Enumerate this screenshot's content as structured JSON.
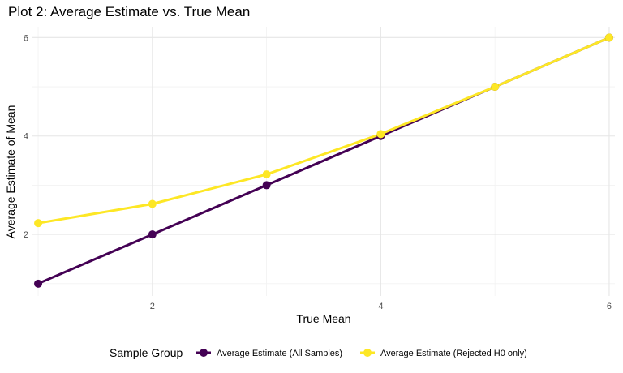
{
  "chart_data": {
    "type": "line",
    "title": "Plot 2: Average Estimate vs. True Mean",
    "xlabel": "True Mean",
    "ylabel": "Average Estimate of Mean",
    "x": [
      1,
      2,
      3,
      4,
      5,
      6
    ],
    "x_ticks": [
      2,
      4,
      6
    ],
    "y_ticks": [
      2,
      4,
      6
    ],
    "xlim": [
      0.95,
      6.05
    ],
    "ylim": [
      0.75,
      6.22
    ],
    "grid": true,
    "legend_position": "bottom",
    "legend_title": "Sample Group",
    "series": [
      {
        "name": "Average Estimate (All Samples)",
        "color": "#440154",
        "values": [
          1.0,
          2.0,
          3.0,
          4.0,
          5.0,
          6.0
        ]
      },
      {
        "name": "Average Estimate (Rejected H0 only)",
        "color": "#FDE725",
        "values": [
          2.23,
          2.62,
          3.22,
          4.04,
          5.0,
          6.0
        ]
      }
    ]
  }
}
